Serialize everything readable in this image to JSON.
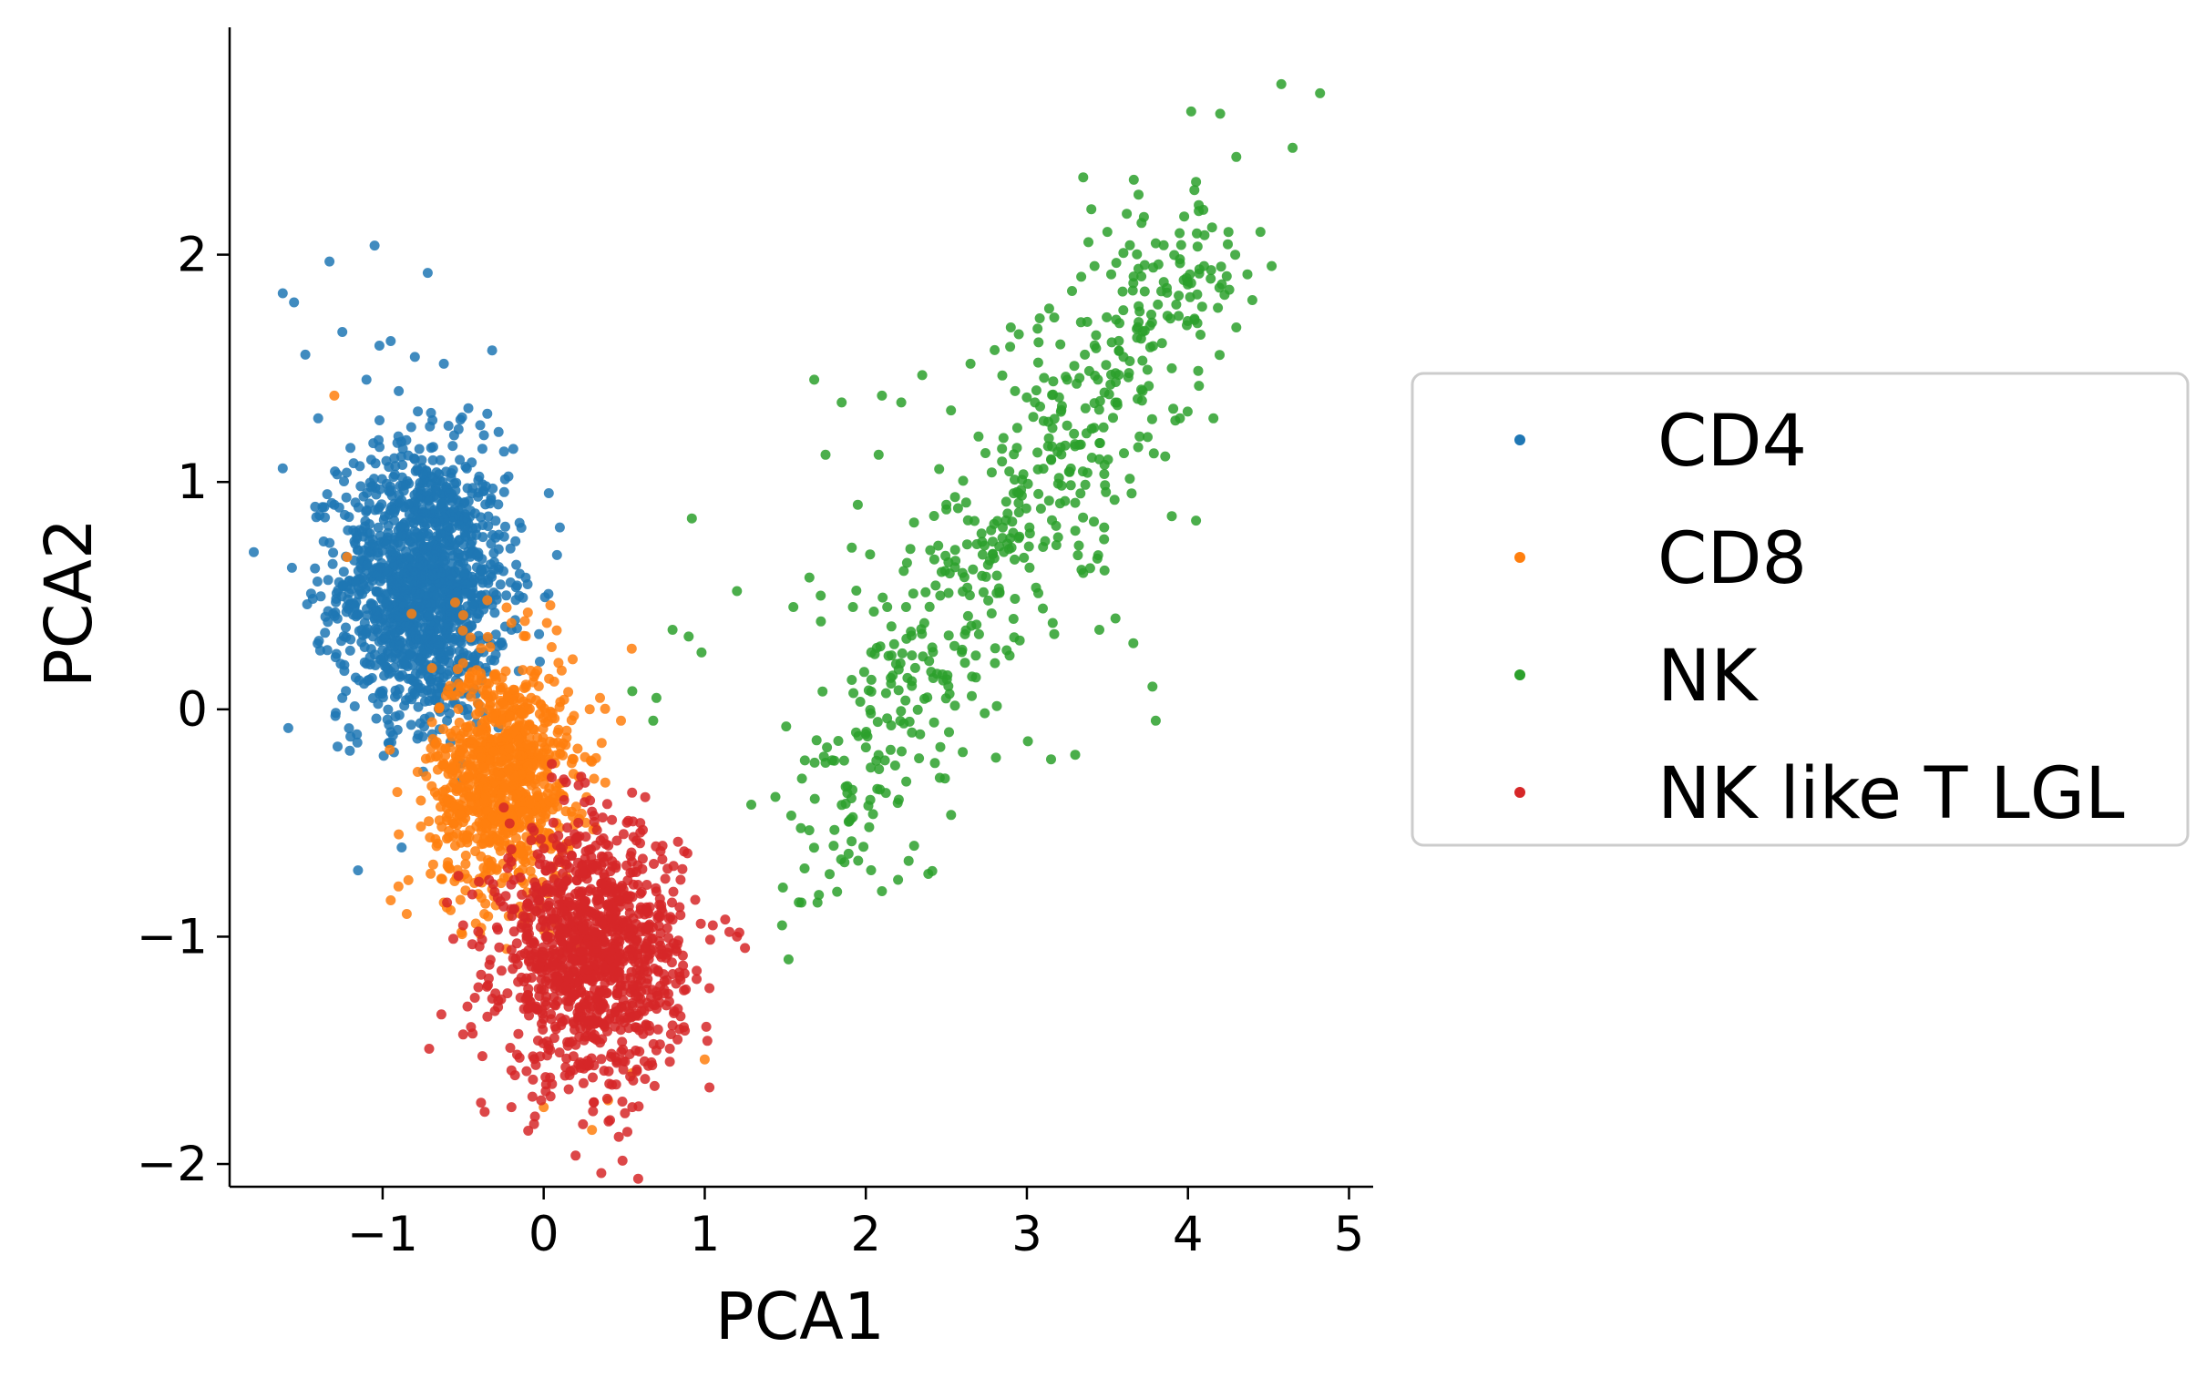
{
  "chart_data": {
    "type": "scatter",
    "title": "",
    "xlabel": "PCA1",
    "ylabel": "PCA2",
    "xlim": [
      -1.95,
      5.15
    ],
    "ylim": [
      -2.1,
      3.0
    ],
    "xticks": [
      -1,
      0,
      1,
      2,
      3,
      4,
      5
    ],
    "yticks": [
      -2,
      -1,
      0,
      1,
      2
    ],
    "xtick_labels": [
      "−1",
      "0",
      "1",
      "2",
      "3",
      "4",
      "5"
    ],
    "ytick_labels": [
      "−2",
      "−1",
      "0",
      "1",
      "2"
    ],
    "grid": false,
    "legend_position": "center-right, outside plot",
    "series": [
      {
        "name": "CD4",
        "color": "#1f77b4",
        "points": [
          [
            -1.62,
            1.83
          ],
          [
            -1.55,
            1.79
          ],
          [
            -1.33,
            1.97
          ],
          [
            -1.05,
            2.04
          ],
          [
            -0.72,
            1.92
          ],
          [
            -1.25,
            1.66
          ],
          [
            -1.48,
            1.56
          ],
          [
            -1.02,
            1.6
          ],
          [
            -0.95,
            1.62
          ],
          [
            -0.8,
            1.55
          ],
          [
            -1.1,
            1.45
          ],
          [
            -0.62,
            1.52
          ],
          [
            -0.9,
            1.4
          ],
          [
            -1.62,
            1.06
          ],
          [
            -1.4,
            1.28
          ],
          [
            -1.2,
            1.15
          ],
          [
            -0.35,
            1.3
          ],
          [
            -0.28,
            1.22
          ],
          [
            -0.15,
            0.82
          ],
          [
            0.1,
            0.8
          ],
          [
            -1.3,
            0.9
          ],
          [
            -1.42,
            0.62
          ],
          [
            -1.1,
            0.2
          ],
          [
            -1.25,
            0.05
          ],
          [
            -1.2,
            -0.12
          ],
          [
            -0.95,
            -0.1
          ],
          [
            -0.75,
            -0.12
          ],
          [
            -0.6,
            -0.05
          ],
          [
            -0.2,
            0.35
          ],
          [
            -0.1,
            0.55
          ],
          [
            -1.0,
            0.4
          ],
          [
            -0.85,
            0.75
          ],
          [
            -0.7,
            0.95
          ],
          [
            -0.55,
            0.6
          ],
          [
            -0.45,
            0.3
          ],
          [
            -0.9,
            0.15
          ],
          [
            -0.6,
            0.45
          ],
          [
            -0.5,
            0.85
          ],
          [
            -1.15,
            0.7
          ],
          [
            -0.8,
            1.1
          ]
        ],
        "cluster": {
          "center": [
            -0.75,
            0.55
          ],
          "spread": [
            0.26,
            0.3
          ],
          "count": 1400
        }
      },
      {
        "name": "CD8",
        "color": "#ff7f0e",
        "points": [
          [
            -1.3,
            1.38
          ],
          [
            -1.22,
            0.67
          ],
          [
            -0.82,
            0.42
          ],
          [
            -0.55,
            0.47
          ],
          [
            -0.35,
            0.48
          ],
          [
            -0.2,
            0.38
          ],
          [
            0.02,
            0.38
          ],
          [
            0.18,
            0.22
          ],
          [
            0.35,
            0.05
          ],
          [
            0.48,
            -0.05
          ],
          [
            -0.9,
            -0.55
          ],
          [
            -0.95,
            -0.84
          ],
          [
            -0.85,
            -0.9
          ],
          [
            -0.62,
            -0.85
          ],
          [
            0.0,
            -1.75
          ],
          [
            0.3,
            -1.85
          ],
          [
            0.4,
            -1.72
          ],
          [
            1.0,
            -1.54
          ],
          [
            0.55,
            -1.6
          ],
          [
            -0.4,
            -0.2
          ],
          [
            -0.25,
            -0.45
          ],
          [
            -0.1,
            -0.3
          ],
          [
            -0.55,
            -0.6
          ],
          [
            -0.35,
            -0.7
          ],
          [
            -0.15,
            0.05
          ]
        ],
        "cluster": {
          "center": [
            -0.25,
            -0.3
          ],
          "spread": [
            0.22,
            0.26
          ],
          "count": 950
        }
      },
      {
        "name": "NK",
        "color": "#2ca02c",
        "points": [
          [
            1.48,
            -0.95
          ],
          [
            1.52,
            -1.1
          ],
          [
            1.6,
            -0.85
          ],
          [
            1.7,
            -0.85
          ],
          [
            1.62,
            -0.7
          ],
          [
            1.8,
            -0.6
          ],
          [
            1.55,
            0.45
          ],
          [
            1.65,
            0.58
          ],
          [
            1.72,
            0.5
          ],
          [
            1.92,
            0.45
          ],
          [
            2.05,
            0.43
          ],
          [
            1.95,
            0.9
          ],
          [
            2.08,
            1.12
          ],
          [
            1.75,
            1.12
          ],
          [
            1.68,
            1.45
          ],
          [
            1.85,
            1.35
          ],
          [
            2.1,
            1.38
          ],
          [
            2.22,
            1.35
          ],
          [
            2.35,
            1.47
          ],
          [
            2.65,
            1.52
          ],
          [
            2.8,
            1.58
          ],
          [
            2.9,
            1.68
          ],
          [
            3.08,
            1.72
          ],
          [
            2.95,
            1.65
          ],
          [
            3.28,
            1.84
          ],
          [
            3.42,
            1.95
          ],
          [
            3.5,
            2.1
          ],
          [
            3.35,
            2.34
          ],
          [
            3.4,
            2.2
          ],
          [
            3.62,
            2.18
          ],
          [
            3.8,
            2.05
          ],
          [
            3.95,
            1.98
          ],
          [
            4.05,
            2.32
          ],
          [
            4.15,
            2.12
          ],
          [
            4.2,
            2.62
          ],
          [
            4.02,
            2.63
          ],
          [
            4.3,
            2.43
          ],
          [
            4.45,
            2.1
          ],
          [
            4.52,
            1.95
          ],
          [
            4.58,
            2.75
          ],
          [
            4.65,
            2.47
          ],
          [
            4.82,
            2.71
          ],
          [
            4.4,
            1.8
          ],
          [
            4.1,
            1.95
          ],
          [
            4.3,
            1.68
          ],
          [
            3.85,
            1.88
          ],
          [
            3.7,
            1.75
          ],
          [
            3.9,
            1.5
          ],
          [
            3.95,
            1.28
          ],
          [
            3.7,
            1.2
          ],
          [
            3.9,
            0.85
          ],
          [
            4.05,
            0.83
          ],
          [
            3.65,
            0.95
          ],
          [
            3.45,
            1.1
          ],
          [
            0.92,
            0.84
          ],
          [
            0.9,
            0.32
          ],
          [
            0.98,
            0.25
          ],
          [
            0.8,
            0.35
          ],
          [
            0.55,
            0.08
          ],
          [
            0.7,
            0.05
          ],
          [
            0.68,
            -0.05
          ],
          [
            1.2,
            0.52
          ],
          [
            3.8,
            -0.05
          ],
          [
            3.78,
            0.1
          ],
          [
            3.55,
            0.4
          ],
          [
            3.35,
            0.6
          ],
          [
            3.45,
            0.35
          ],
          [
            2.4,
            0.7
          ],
          [
            2.45,
            0.72
          ],
          [
            2.25,
            0.45
          ],
          [
            3.15,
            -0.22
          ],
          [
            3.3,
            -0.2
          ],
          [
            2.1,
            -0.8
          ],
          [
            2.2,
            -0.75
          ],
          [
            2.3,
            -0.6
          ],
          [
            3.6,
            1.55
          ],
          [
            3.25,
            1.45
          ],
          [
            3.05,
            1.35
          ],
          [
            3.15,
            1.1
          ],
          [
            2.95,
            0.95
          ],
          [
            2.7,
            1.2
          ],
          [
            2.85,
            0.8
          ],
          [
            2.6,
            0.6
          ],
          [
            2.5,
            0.9
          ],
          [
            3.48,
            0.8
          ]
        ],
        "trend": {
          "from": [
            1.75,
            -0.55
          ],
          "to": [
            4.05,
            2.05
          ],
          "spread": [
            0.26,
            0.2
          ],
          "count": 520
        }
      },
      {
        "name": "NK like T LGL",
        "color": "#d62728",
        "points": [
          [
            -0.5,
            -1.43
          ],
          [
            -0.2,
            -1.75
          ],
          [
            0.25,
            -1.58
          ],
          [
            0.55,
            -1.75
          ],
          [
            0.7,
            -1.5
          ],
          [
            0.95,
            -1.15
          ],
          [
            1.05,
            -0.95
          ],
          [
            1.2,
            -1.0
          ],
          [
            1.25,
            -1.05
          ],
          [
            0.85,
            -0.75
          ],
          [
            0.6,
            -0.5
          ],
          [
            0.3,
            -0.45
          ],
          [
            0.05,
            -0.3
          ],
          [
            -0.6,
            -0.85
          ],
          [
            -0.5,
            -0.95
          ],
          [
            -0.3,
            -1.25
          ],
          [
            0.85,
            -1.35
          ],
          [
            0.45,
            -1.65
          ],
          [
            0.15,
            -1.48
          ],
          [
            0.75,
            -1.25
          ]
        ],
        "cluster": {
          "center": [
            0.3,
            -1.08
          ],
          "spread": [
            0.28,
            0.28
          ],
          "count": 1150
        }
      }
    ]
  }
}
